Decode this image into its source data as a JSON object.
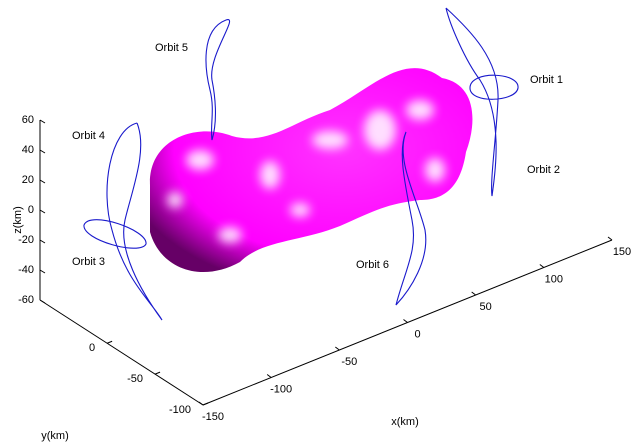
{
  "chart_data": {
    "type": "surface3d",
    "xlabel": "x(km)",
    "ylabel": "y(km)",
    "zlabel": "z(km)",
    "xlim": [
      -150,
      150
    ],
    "xticks": [
      -150,
      -100,
      -50,
      0,
      50,
      100,
      150
    ],
    "ylim": [
      -100,
      70
    ],
    "yticks": [
      -100,
      -50,
      0
    ],
    "zlim": [
      -60,
      60
    ],
    "zticks": [
      -60,
      -40,
      -20,
      0,
      20,
      40,
      60
    ],
    "annotations": [
      "Orbit 1",
      "Orbit 2",
      "Orbit 3",
      "Orbit 4",
      "Orbit 5",
      "Orbit 6"
    ],
    "color": "#ff00ff",
    "orbit_color": "#1a1acc"
  }
}
